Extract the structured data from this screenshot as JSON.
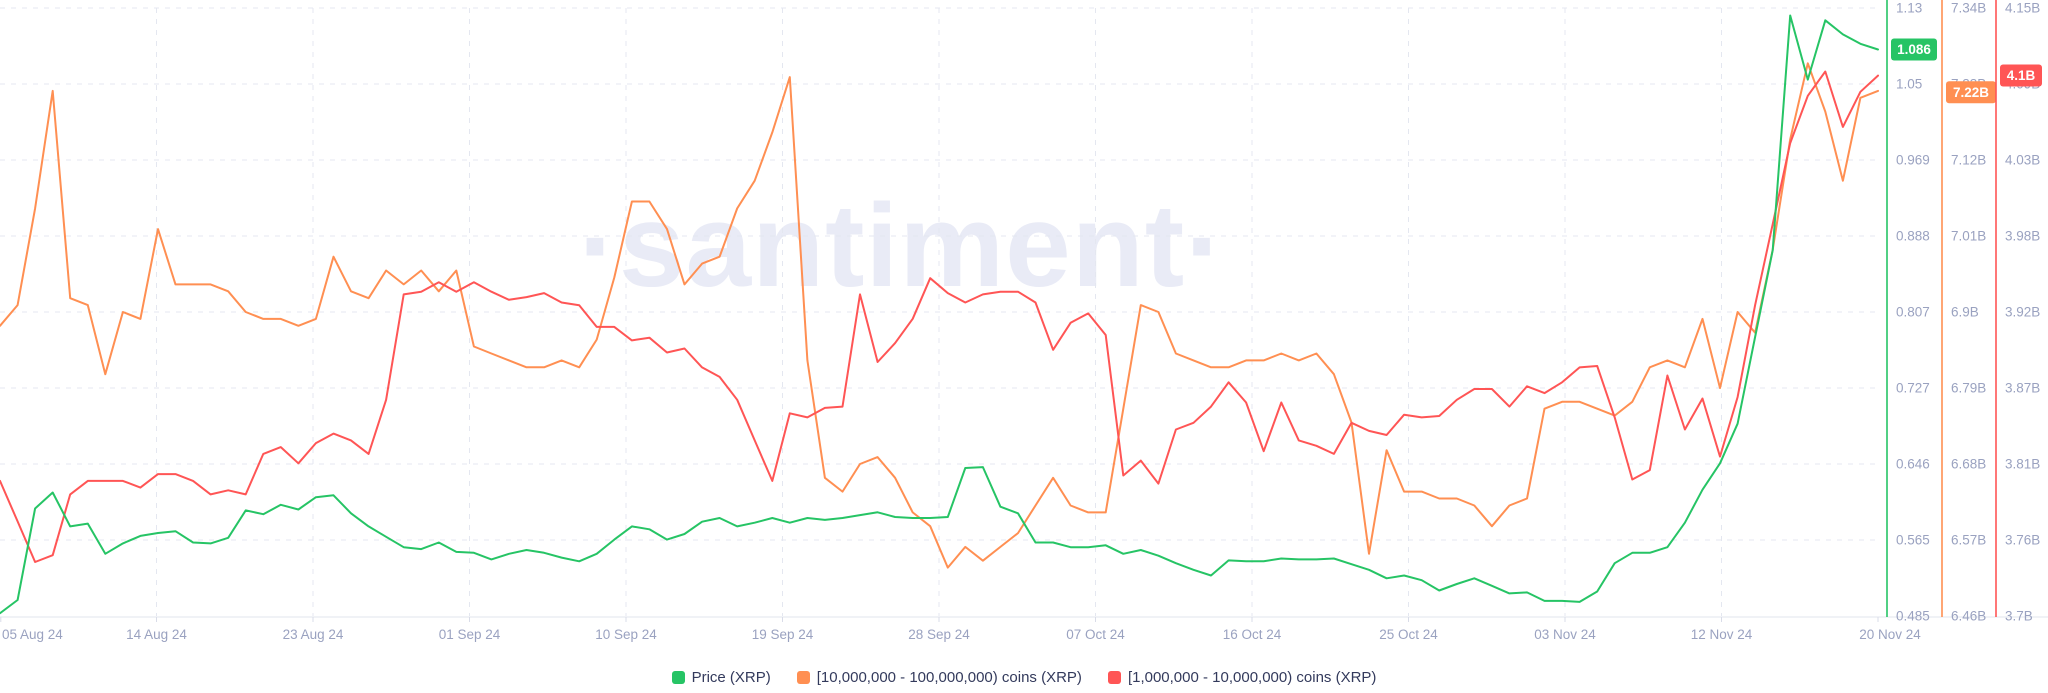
{
  "watermark": "·santiment·",
  "legend": {
    "items": [
      {
        "label": "Price (XRP)",
        "color": "#26c465"
      },
      {
        "label": "[10,000,000 - 100,000,000) coins (XRP)",
        "color": "#ff8f52"
      },
      {
        "label": "[1,000,000 - 10,000,000) coins (XRP)",
        "color": "#ff5555"
      }
    ]
  },
  "y_axes": [
    {
      "id": "price",
      "color": "#26c465",
      "min": 0.485,
      "max": 1.13,
      "ticks": [
        "1.13",
        "1.05",
        "0.969",
        "0.888",
        "0.807",
        "0.727",
        "0.646",
        "0.565",
        "0.485"
      ],
      "badge_label": "1.086",
      "badge_value": 1.086,
      "badge_width": 46
    },
    {
      "id": "coins-10m-100m",
      "color": "#ff8f52",
      "min": 6.46,
      "max": 7.34,
      "ticks": [
        "7.34B",
        "7.23B",
        "7.12B",
        "7.01B",
        "6.9B",
        "6.79B",
        "6.68B",
        "6.57B",
        "6.46B"
      ],
      "badge_label": "7.22B",
      "badge_value": 7.218,
      "badge_width": 50
    },
    {
      "id": "coins-1m-10m",
      "color": "#ff5555",
      "min": 3.7,
      "max": 4.15,
      "ticks": [
        "4.15B",
        "4.09B",
        "4.03B",
        "3.98B",
        "3.92B",
        "3.87B",
        "3.81B",
        "3.76B",
        "3.7B"
      ],
      "badge_label": "4.1B",
      "badge_value": 4.1,
      "badge_width": 42
    }
  ],
  "x_axis": {
    "tick_labels": [
      "05 Aug 24",
      "14 Aug 24",
      "23 Aug 24",
      "01 Sep 24",
      "10 Sep 24",
      "19 Sep 24",
      "28 Sep 24",
      "07 Oct 24",
      "16 Oct 24",
      "25 Oct 24",
      "03 Nov 24",
      "12 Nov 24",
      "20 Nov 24"
    ]
  },
  "chart_data": {
    "type": "line",
    "title": "",
    "start_date": "2024-08-05",
    "end_date": "2024-11-20",
    "interval": "1d",
    "grid": true,
    "legend_position": "bottom",
    "series": [
      {
        "name": "Price (XRP)",
        "axis": "price",
        "color": "#26c465",
        "last_value": 1.086,
        "values": [
          0.488,
          0.502,
          0.599,
          0.616,
          0.58,
          0.583,
          0.551,
          0.562,
          0.57,
          0.573,
          0.575,
          0.563,
          0.562,
          0.568,
          0.597,
          0.593,
          0.603,
          0.598,
          0.611,
          0.613,
          0.594,
          0.58,
          0.569,
          0.558,
          0.556,
          0.563,
          0.553,
          0.552,
          0.545,
          0.551,
          0.555,
          0.552,
          0.547,
          0.543,
          0.551,
          0.566,
          0.58,
          0.577,
          0.566,
          0.572,
          0.585,
          0.589,
          0.58,
          0.584,
          0.589,
          0.584,
          0.589,
          0.587,
          0.589,
          0.592,
          0.595,
          0.59,
          0.589,
          0.589,
          0.59,
          0.642,
          0.643,
          0.601,
          0.594,
          0.563,
          0.563,
          0.558,
          0.558,
          0.56,
          0.551,
          0.555,
          0.549,
          0.541,
          0.534,
          0.528,
          0.544,
          0.543,
          0.543,
          0.546,
          0.545,
          0.545,
          0.546,
          0.54,
          0.534,
          0.525,
          0.528,
          0.523,
          0.512,
          0.519,
          0.525,
          0.517,
          0.509,
          0.51,
          0.501,
          0.501,
          0.5,
          0.511,
          0.541,
          0.552,
          0.552,
          0.558,
          0.584,
          0.619,
          0.647,
          0.689,
          0.781,
          0.873,
          1.122,
          1.054,
          1.117,
          1.102,
          1.092,
          1.086
        ]
      },
      {
        "name": "[10,000,000 - 100,000,000) coins (XRP)",
        "axis": "coins-10m-100m",
        "color": "#ff8f52",
        "last_value": 7.22,
        "values": [
          6.88,
          6.91,
          7.05,
          7.22,
          6.92,
          6.91,
          6.81,
          6.9,
          6.89,
          7.02,
          6.94,
          6.94,
          6.94,
          6.93,
          6.9,
          6.89,
          6.89,
          6.88,
          6.89,
          6.98,
          6.93,
          6.92,
          6.96,
          6.94,
          6.96,
          6.93,
          6.96,
          6.85,
          6.84,
          6.83,
          6.82,
          6.82,
          6.83,
          6.82,
          6.86,
          6.95,
          7.06,
          7.06,
          7.02,
          6.94,
          6.97,
          6.98,
          7.05,
          7.09,
          7.16,
          7.24,
          6.83,
          6.66,
          6.64,
          6.68,
          6.69,
          6.66,
          6.61,
          6.59,
          6.53,
          6.56,
          6.54,
          6.56,
          6.58,
          6.62,
          6.66,
          6.62,
          6.61,
          6.61,
          6.76,
          6.91,
          6.9,
          6.84,
          6.83,
          6.82,
          6.82,
          6.83,
          6.83,
          6.84,
          6.83,
          6.84,
          6.81,
          6.74,
          6.55,
          6.7,
          6.64,
          6.64,
          6.63,
          6.63,
          6.62,
          6.59,
          6.62,
          6.63,
          6.76,
          6.77,
          6.77,
          6.76,
          6.75,
          6.77,
          6.82,
          6.83,
          6.82,
          6.89,
          6.79,
          6.9,
          6.87,
          6.99,
          7.15,
          7.26,
          7.19,
          7.09,
          7.21,
          7.22
        ]
      },
      {
        "name": "[1,000,000 - 10,000,000) coins (XRP)",
        "axis": "coins-1m-10m",
        "color": "#ff5555",
        "last_value": 4.1,
        "values": [
          3.8,
          3.77,
          3.74,
          3.745,
          3.79,
          3.8,
          3.8,
          3.8,
          3.795,
          3.805,
          3.805,
          3.8,
          3.79,
          3.793,
          3.79,
          3.82,
          3.825,
          3.813,
          3.828,
          3.835,
          3.83,
          3.82,
          3.86,
          3.938,
          3.94,
          3.947,
          3.94,
          3.947,
          3.94,
          3.934,
          3.936,
          3.939,
          3.932,
          3.93,
          3.914,
          3.914,
          3.904,
          3.906,
          3.895,
          3.898,
          3.884,
          3.877,
          3.86,
          3.83,
          3.8,
          3.85,
          3.847,
          3.854,
          3.855,
          3.938,
          3.888,
          3.902,
          3.92,
          3.95,
          3.939,
          3.932,
          3.938,
          3.94,
          3.94,
          3.932,
          3.897,
          3.917,
          3.924,
          3.908,
          3.804,
          3.815,
          3.798,
          3.838,
          3.843,
          3.855,
          3.873,
          3.858,
          3.822,
          3.858,
          3.83,
          3.826,
          3.82,
          3.843,
          3.837,
          3.834,
          3.849,
          3.847,
          3.848,
          3.86,
          3.868,
          3.868,
          3.855,
          3.87,
          3.865,
          3.873,
          3.884,
          3.885,
          3.847,
          3.801,
          3.808,
          3.878,
          3.838,
          3.861,
          3.818,
          3.862,
          3.93,
          3.99,
          4.05,
          4.085,
          4.103,
          4.062,
          4.088,
          4.1
        ]
      }
    ]
  }
}
